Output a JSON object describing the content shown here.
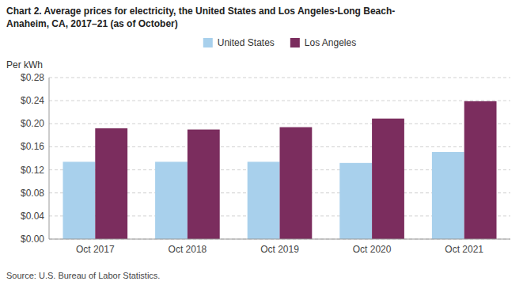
{
  "chart_data": {
    "type": "bar",
    "title": [
      "Chart 2. Average prices for electricity, the United States and Los Angeles-Long Beach-",
      "Anaheim, CA, 2017–21 (as of October)"
    ],
    "ylabel": "Per kWh",
    "source": "Source: U.S. Bureau of Labor Statistics.",
    "categories": [
      "Oct 2017",
      "Oct 2018",
      "Oct 2019",
      "Oct 2020",
      "Oct 2021"
    ],
    "series": [
      {
        "name": "United States",
        "color": "#a8d0ec",
        "values": [
          0.134,
          0.134,
          0.134,
          0.132,
          0.151
        ]
      },
      {
        "name": "Los Angeles",
        "color": "#7b2d5e",
        "values": [
          0.192,
          0.19,
          0.194,
          0.209,
          0.239
        ]
      }
    ],
    "ylim": [
      0.0,
      0.28
    ],
    "yticks": [
      {
        "value": 0.0,
        "label": "$0.00"
      },
      {
        "value": 0.04,
        "label": "$0.04"
      },
      {
        "value": 0.08,
        "label": "$0.08"
      },
      {
        "value": 0.12,
        "label": "$0.12"
      },
      {
        "value": 0.16,
        "label": "$0.16"
      },
      {
        "value": 0.2,
        "label": "$0.20"
      },
      {
        "value": 0.24,
        "label": "$0.24"
      },
      {
        "value": 0.28,
        "label": "$0.28"
      }
    ],
    "grid": true,
    "legend": "top"
  }
}
